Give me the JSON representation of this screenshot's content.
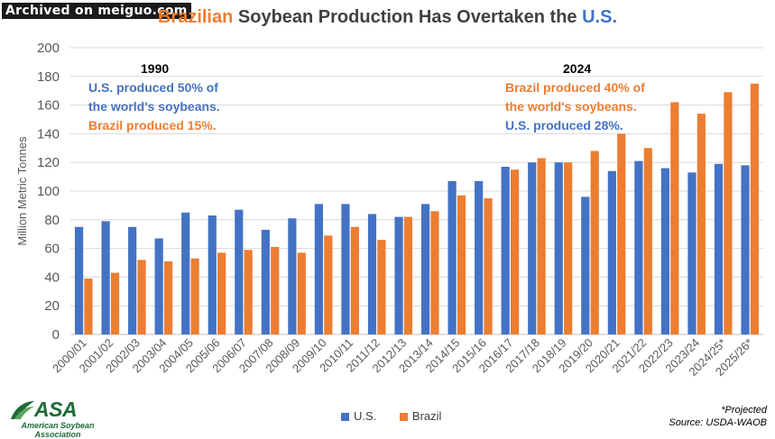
{
  "watermark": "Archived on meiguo.com",
  "title": {
    "part1": "Brazilian",
    "part2": " Soybean Production Has Overtaken the ",
    "part3": "U.S."
  },
  "annotations": {
    "left_year": "1990",
    "left_line1": "U.S. produced 50% of",
    "left_line2": "the world's soybeans.",
    "left_line3": "Brazil produced 15%.",
    "right_year": "2024",
    "right_line1": "Brazil produced 40% of",
    "right_line2": "the world's soybeans.",
    "right_line3": "U.S. produced 28%."
  },
  "footnote": {
    "line1": "*Projected",
    "line2": "Source: USDA-WAOB"
  },
  "logo": {
    "name": "ASA",
    "line1": "American Soybean",
    "line2": "Association"
  },
  "colors": {
    "us": "#4472c4",
    "brazil": "#ed7d31",
    "grid": "#d9d9d9",
    "text": "#595959"
  },
  "chart_data": {
    "type": "bar",
    "title": "Brazilian Soybean Production Has Overtaken the U.S.",
    "xlabel": "",
    "ylabel": "Million Metric Tonnes",
    "ylim": [
      0,
      200
    ],
    "yticks": [
      0,
      20,
      40,
      60,
      80,
      100,
      120,
      140,
      160,
      180,
      200
    ],
    "grid": true,
    "legend_position": "bottom",
    "categories": [
      "2000/01",
      "2001/02",
      "2002/03",
      "2003/04",
      "2004/05",
      "2005/06",
      "2006/07",
      "2007/08",
      "2008/09",
      "2009/10",
      "2010/11",
      "2011/12",
      "2012/13",
      "2013/14",
      "2014/15",
      "2015/16",
      "2016/17",
      "2017/18",
      "2018/19",
      "2019/20",
      "2020/21",
      "2021/22",
      "2022/23",
      "2023/24",
      "2024/25*",
      "2025/26*"
    ],
    "series": [
      {
        "name": "U.S.",
        "values": [
          75,
          79,
          75,
          67,
          85,
          83,
          87,
          73,
          81,
          91,
          91,
          84,
          82,
          91,
          107,
          107,
          117,
          120,
          120,
          96,
          114,
          121,
          116,
          113,
          119,
          118
        ]
      },
      {
        "name": "Brazil",
        "values": [
          39,
          43,
          52,
          51,
          53,
          57,
          59,
          61,
          57,
          69,
          75,
          66,
          82,
          86,
          97,
          95,
          115,
          123,
          120,
          128,
          140,
          130,
          162,
          154,
          169,
          175
        ]
      }
    ]
  }
}
